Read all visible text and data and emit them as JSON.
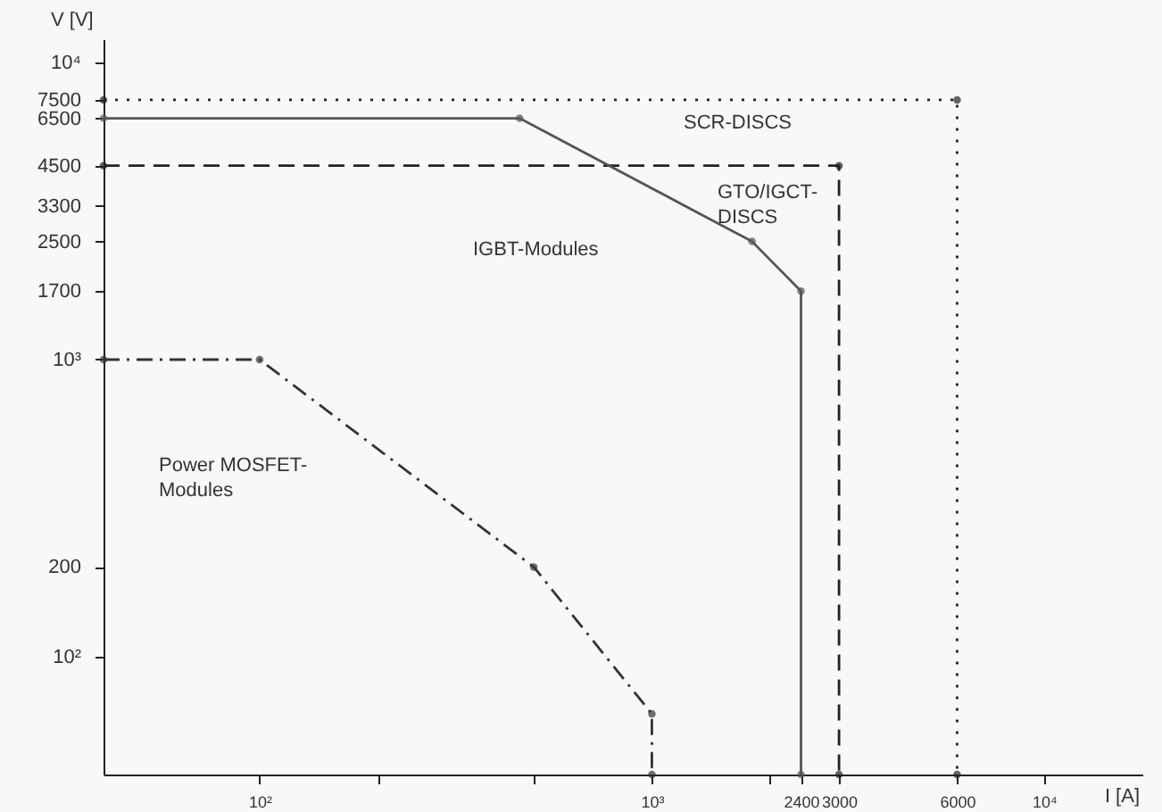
{
  "chart_data": {
    "type": "line",
    "xlabel": "I [A]",
    "ylabel": "V [V]",
    "log": "xy",
    "grid": false,
    "marker": "circle",
    "xlim": [
      40,
      17800
    ],
    "ylim": [
      40,
      12000
    ],
    "xticks": [
      {
        "value": 100,
        "label": "10²"
      },
      {
        "value": 200,
        "label": null
      },
      {
        "value": 500,
        "label": null
      },
      {
        "value": 1000,
        "label": "10³"
      },
      {
        "value": 2000,
        "label": null
      },
      2400,
      3000,
      6000,
      {
        "value": 10000,
        "label": "10⁴"
      }
    ],
    "yticks": [
      {
        "value": 100,
        "label": "10²"
      },
      200,
      {
        "value": 1000,
        "label": "10³"
      },
      1700,
      2500,
      3300,
      4500,
      6500,
      7500,
      {
        "value": 10000,
        "label": "10⁴"
      }
    ],
    "series": [
      {
        "color": "#222222",
        "line_style": "dotted",
        "x": [
          40,
          6000,
          6000
        ],
        "values": [
          7500,
          7500,
          40
        ]
      },
      {
        "color": "#222222",
        "line_style": "dashed",
        "x": [
          40,
          3000,
          3000
        ],
        "values": [
          4500,
          4500,
          40
        ]
      },
      {
        "color": "#555555",
        "line_style": "solid",
        "x": [
          40,
          460,
          1800,
          2400,
          2400
        ],
        "values": [
          6500,
          6500,
          2500,
          1700,
          40
        ]
      },
      {
        "color": "#333333",
        "line_style": "dashdot",
        "x": [
          40,
          100,
          500,
          1000,
          1000
        ],
        "values": [
          1000,
          1000,
          200,
          64,
          40
        ]
      }
    ],
    "annotations": [
      "SCR-DISCS",
      "GTO/IGCT-\nDISCS",
      "IGBT-Modules",
      "Power MOSFET-\nModules"
    ]
  }
}
